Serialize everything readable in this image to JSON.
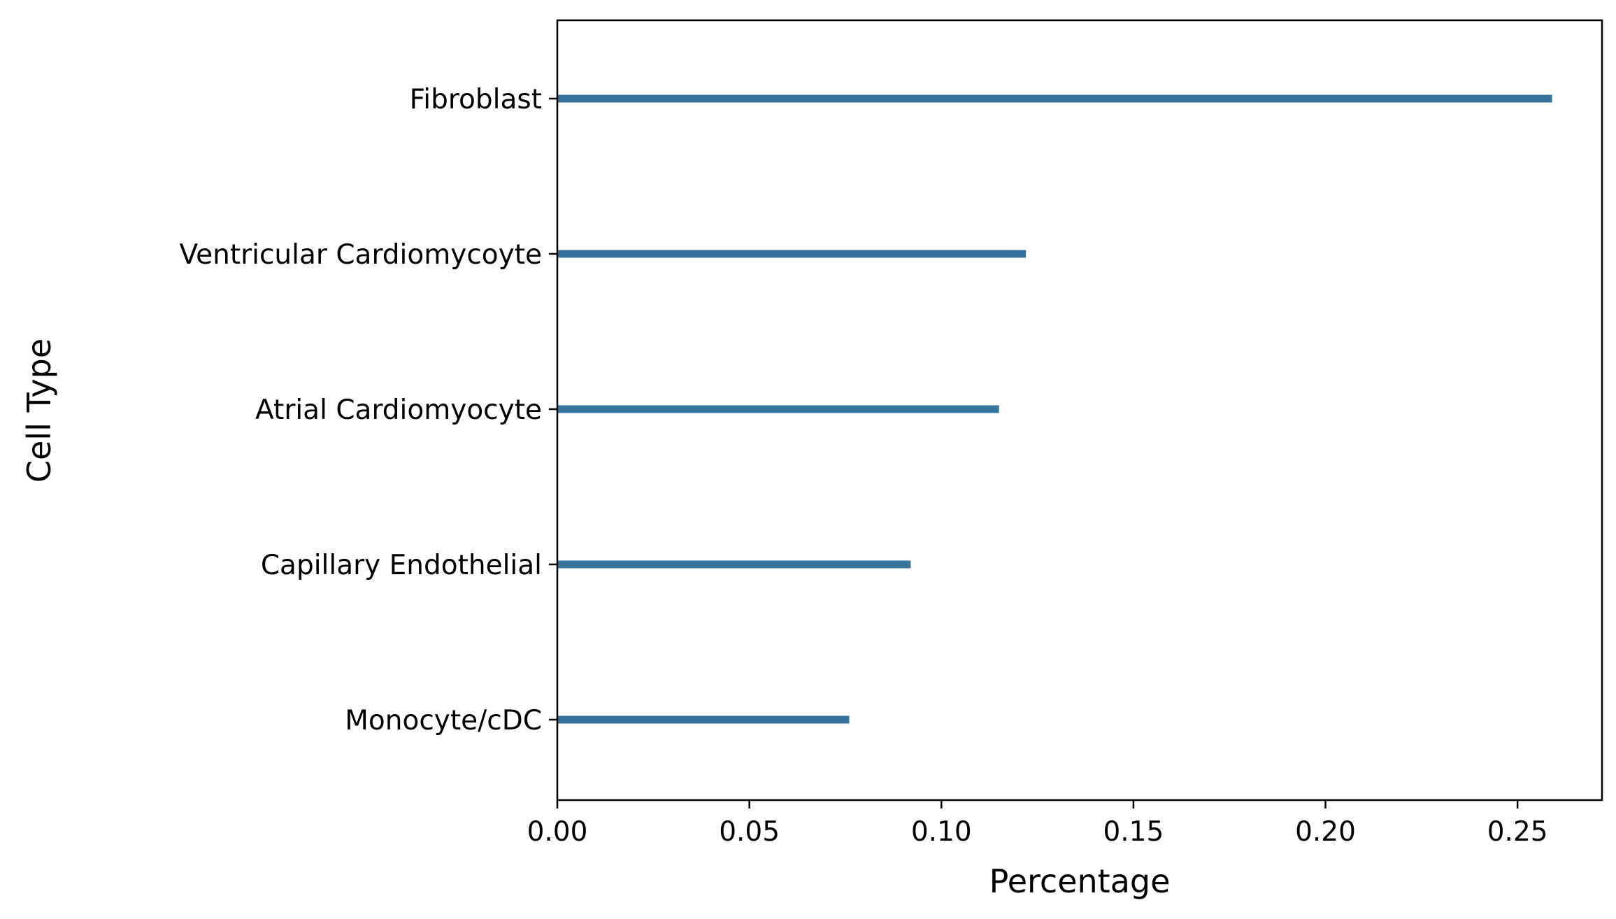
{
  "chart_data": {
    "type": "bar",
    "orientation": "horizontal",
    "categories": [
      "Fibroblast",
      "Ventricular Cardiomycoyte",
      "Atrial Cardiomyocyte",
      "Capillary Endothelial",
      "Monocyte/cDC"
    ],
    "values": [
      0.259,
      0.122,
      0.115,
      0.092,
      0.076
    ],
    "xlabel": "Percentage",
    "ylabel": "Cell Type",
    "xlim": [
      0.0,
      0.272
    ],
    "xticks": [
      0.0,
      0.05,
      0.1,
      0.15,
      0.2,
      0.25
    ],
    "xtick_labels": [
      "0.00",
      "0.05",
      "0.10",
      "0.15",
      "0.20",
      "0.25"
    ],
    "bar_color": "#36739c",
    "grid": false,
    "legend": "none"
  }
}
